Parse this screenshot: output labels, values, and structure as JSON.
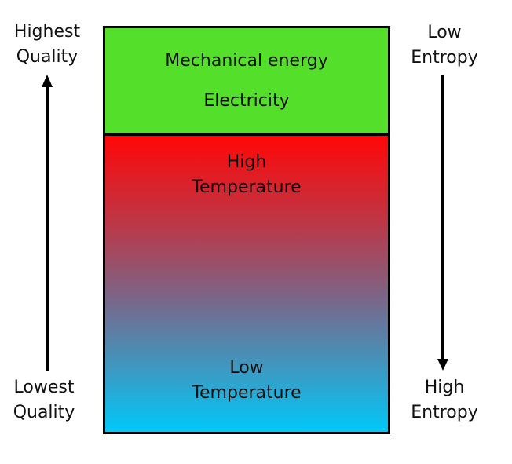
{
  "left_axis": {
    "top_label": [
      "Highest",
      "Quality"
    ],
    "bottom_label": [
      "Lowest",
      "Quality"
    ]
  },
  "right_axis": {
    "top_label": [
      "Low",
      "Entropy"
    ],
    "bottom_label": [
      "High",
      "Entropy"
    ]
  },
  "top_section": {
    "line1": "Mechanical energy",
    "line2": "Electricity",
    "color": "#54e02a"
  },
  "gradient_section": {
    "top_label": [
      "High",
      "Temperature"
    ],
    "bottom_label": [
      "Low",
      "Temperature"
    ],
    "top_color": "#ff0707",
    "bottom_color": "#00c8f8"
  }
}
